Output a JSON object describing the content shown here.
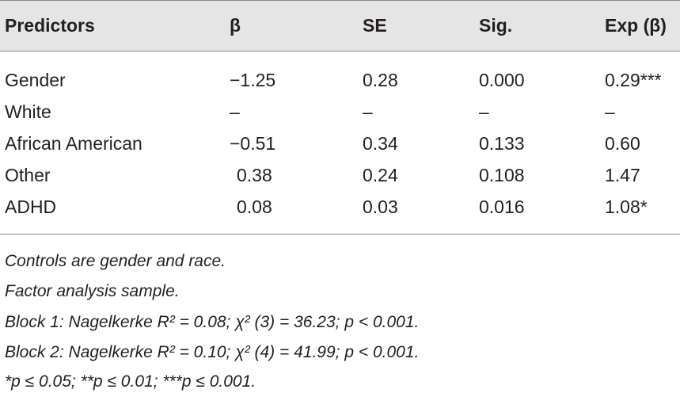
{
  "table": {
    "headers": {
      "predictors": "Predictors",
      "beta": "β",
      "se": "SE",
      "sig": "Sig.",
      "exp": "Exp (β)"
    },
    "rows": [
      {
        "predictor": "Gender",
        "beta": "−1.25",
        "se": "0.28",
        "sig": "0.000",
        "exp": "0.29***"
      },
      {
        "predictor": "White",
        "beta": "–",
        "se": "–",
        "sig": "–",
        "exp": "–"
      },
      {
        "predictor": "African American",
        "beta": "−0.51",
        "se": "0.34",
        "sig": "0.133",
        "exp": "0.60"
      },
      {
        "predictor": "Other",
        "beta": "0.38",
        "se": "0.24",
        "sig": "0.108",
        "exp": "1.47"
      },
      {
        "predictor": "ADHD",
        "beta": "0.08",
        "se": "0.03",
        "sig": "0.016",
        "exp": "1.08*"
      }
    ]
  },
  "notes": [
    "Controls are gender and race.",
    "Factor analysis sample.",
    "Block 1: Nagelkerke R² = 0.08; χ² (3) = 36.23; p < 0.001.",
    "Block 2: Nagelkerke R² = 0.10; χ² (4) = 41.99; p < 0.001.",
    "*p ≤ 0.05; **p ≤ 0.01; ***p ≤ 0.001."
  ]
}
